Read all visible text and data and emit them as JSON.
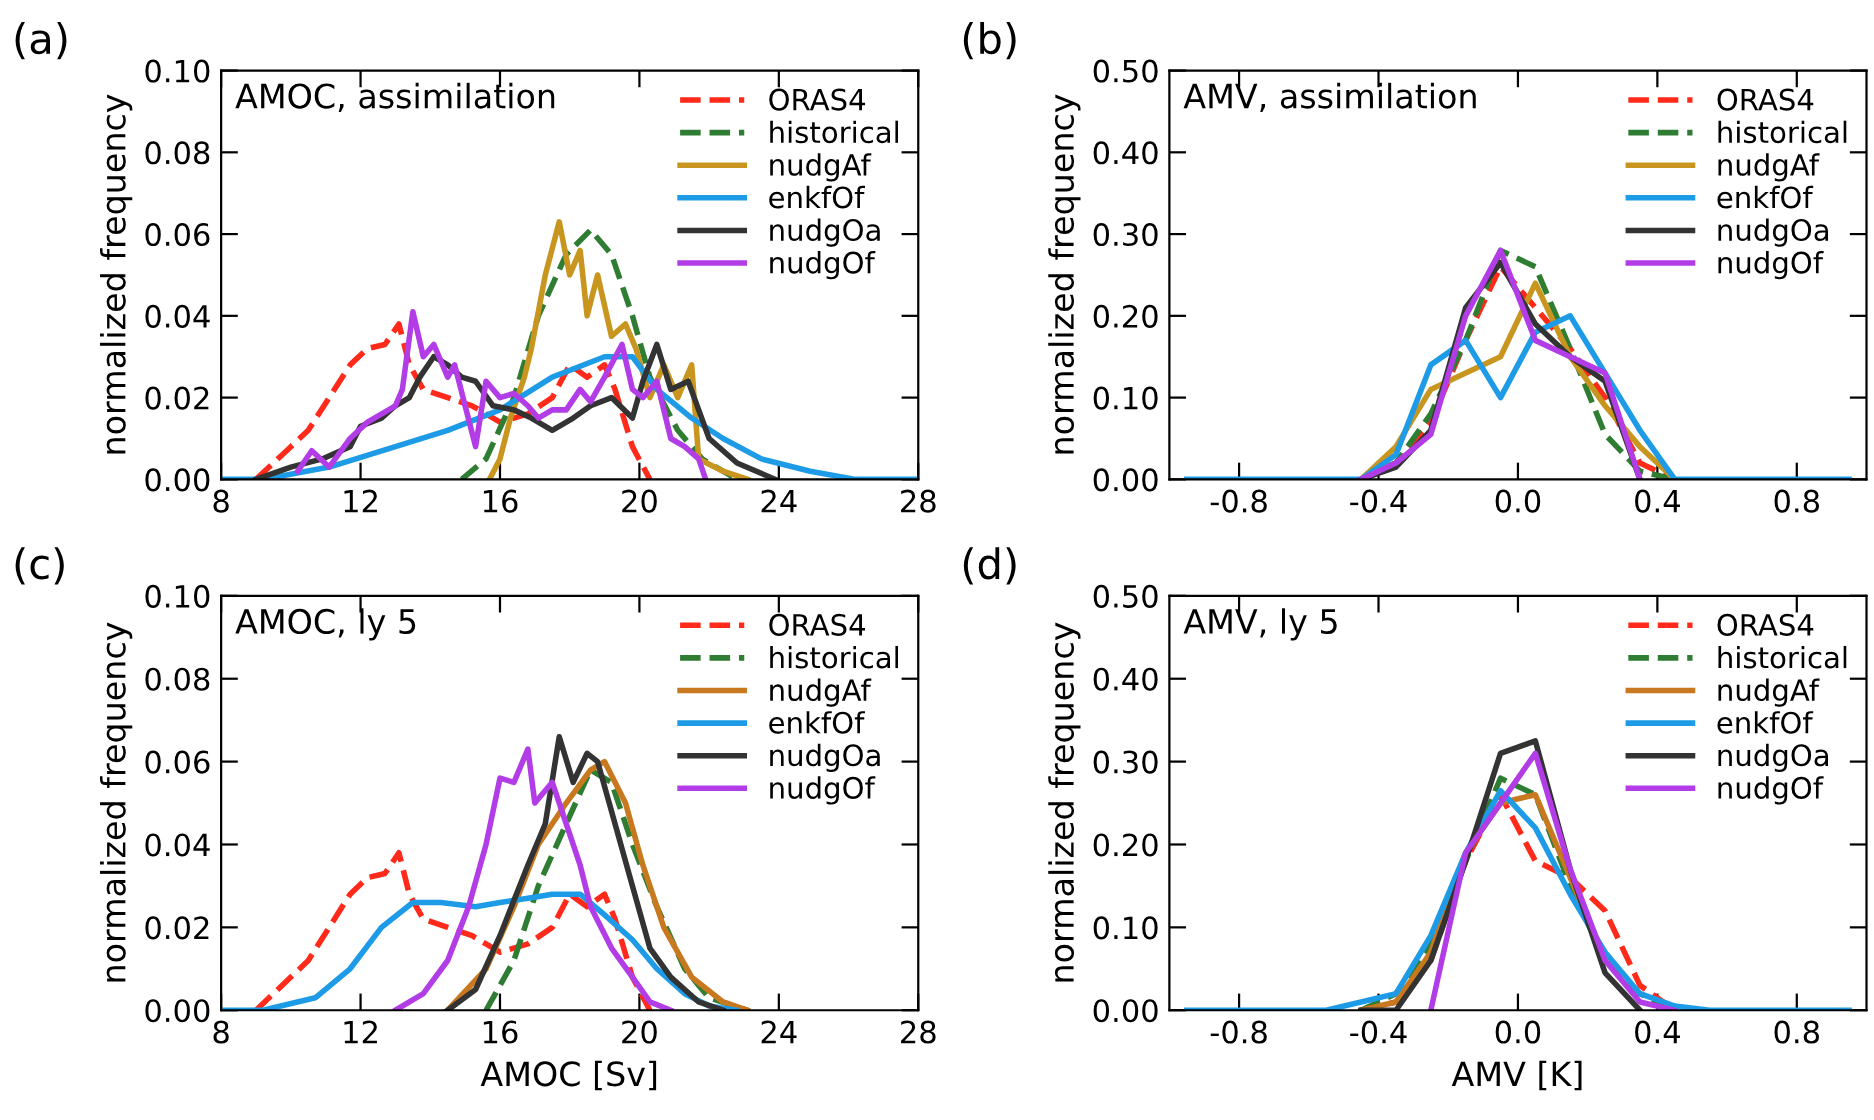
{
  "chart_data": [
    {
      "type": "line",
      "title": "(a)",
      "subtitle": "AMOC, assimilation",
      "ylabel": "normalized frequency",
      "xlim": [
        8,
        28
      ],
      "xticks": [
        8,
        12,
        16,
        20,
        24,
        28
      ],
      "ylim": [
        0,
        0.1
      ],
      "yticks": [
        {
          "value": 0,
          "label": "0.00"
        },
        {
          "value": 0.02,
          "label": "0.02"
        },
        {
          "value": 0.04,
          "label": "0.04"
        },
        {
          "value": 0.06,
          "label": "0.06"
        },
        {
          "value": 0.08,
          "label": "0.08"
        },
        {
          "value": 0.1,
          "label": "0.10"
        }
      ],
      "legend": "top right",
      "grid": false,
      "series": [
        {
          "name": "ORAS4",
          "color": "#ff2a1a",
          "line_style": "dashed",
          "x": [
            9.0,
            10.0,
            10.5,
            11.1,
            11.7,
            12.2,
            12.7,
            13.1,
            13.4,
            13.8,
            14.5,
            15.2,
            16.0,
            16.8,
            17.5,
            18.0,
            18.5,
            19.0,
            19.3,
            19.8,
            20.3
          ],
          "values": [
            0,
            0.008,
            0.012,
            0.02,
            0.028,
            0.032,
            0.033,
            0.038,
            0.028,
            0.022,
            0.02,
            0.018,
            0.014,
            0.016,
            0.02,
            0.028,
            0.025,
            0.028,
            0.022,
            0.008,
            0
          ]
        },
        {
          "name": "historical",
          "color": "#2e7d32",
          "line_style": "dashed",
          "x": [
            14.9,
            15.6,
            16.4,
            17.1,
            17.9,
            18.6,
            19.2,
            19.8,
            20.3,
            21.1,
            21.8,
            22.8
          ],
          "values": [
            0,
            0.005,
            0.02,
            0.04,
            0.055,
            0.061,
            0.055,
            0.04,
            0.025,
            0.012,
            0.005,
            0
          ]
        },
        {
          "name": "nudgAf",
          "color": "#c8961e",
          "line_style": "solid",
          "x": [
            15.7,
            16.0,
            16.3,
            16.7,
            16.9,
            17.3,
            17.7,
            18.0,
            18.3,
            18.5,
            18.8,
            19.2,
            19.6,
            19.9,
            20.3,
            20.7,
            21.1,
            21.5,
            21.7,
            22.4,
            23.1
          ],
          "values": [
            0,
            0.005,
            0.015,
            0.025,
            0.032,
            0.05,
            0.063,
            0.05,
            0.056,
            0.04,
            0.05,
            0.035,
            0.038,
            0.032,
            0.02,
            0.028,
            0.02,
            0.028,
            0.005,
            0.002,
            0
          ]
        },
        {
          "name": "enkfOf",
          "color": "#1e9be6",
          "line_style": "solid",
          "x": [
            8.0,
            9.2,
            11.1,
            13.0,
            14.5,
            16.0,
            17.5,
            19.0,
            19.8,
            20.5,
            21.5,
            22.4,
            23.5,
            24.9,
            26.2,
            28.0
          ],
          "values": [
            0,
            0,
            0.003,
            0.008,
            0.012,
            0.017,
            0.025,
            0.03,
            0.03,
            0.022,
            0.015,
            0.01,
            0.005,
            0.002,
            0,
            0
          ]
        },
        {
          "name": "nudgOa",
          "color": "#333333",
          "line_style": "solid",
          "x": [
            9.0,
            10.0,
            10.9,
            11.7,
            12.0,
            12.6,
            13.0,
            13.4,
            13.7,
            14.1,
            14.5,
            14.9,
            15.3,
            15.8,
            16.4,
            16.9,
            17.5,
            18.1,
            18.6,
            19.2,
            19.8,
            20.1,
            20.5,
            20.9,
            21.4,
            21.7,
            22.0,
            22.8,
            23.9
          ],
          "values": [
            0,
            0.003,
            0.005,
            0.008,
            0.013,
            0.015,
            0.018,
            0.02,
            0.025,
            0.03,
            0.028,
            0.025,
            0.024,
            0.018,
            0.017,
            0.015,
            0.012,
            0.015,
            0.018,
            0.02,
            0.015,
            0.024,
            0.033,
            0.022,
            0.024,
            0.017,
            0.01,
            0.004,
            0
          ]
        },
        {
          "name": "nudgOf",
          "color": "#b23ce6",
          "line_style": "solid",
          "x": [
            10.2,
            10.6,
            11.1,
            11.7,
            12.2,
            13.0,
            13.2,
            13.5,
            13.8,
            14.1,
            14.5,
            14.7,
            15.0,
            15.3,
            15.6,
            16.0,
            16.4,
            16.8,
            17.1,
            17.5,
            17.9,
            18.3,
            18.6,
            19.0,
            19.5,
            19.8,
            20.1,
            20.5,
            20.9,
            21.3,
            21.7,
            21.9
          ],
          "values": [
            0.002,
            0.007,
            0.003,
            0.01,
            0.014,
            0.018,
            0.022,
            0.041,
            0.03,
            0.033,
            0.025,
            0.028,
            0.018,
            0.008,
            0.024,
            0.02,
            0.021,
            0.018,
            0.015,
            0.017,
            0.017,
            0.022,
            0.019,
            0.025,
            0.033,
            0.022,
            0.02,
            0.024,
            0.01,
            0.008,
            0.005,
            0
          ]
        }
      ]
    },
    {
      "type": "line",
      "title": "(b)",
      "subtitle": "AMV, assimilation",
      "ylabel": "normalized frequency",
      "xlim": [
        -1,
        1
      ],
      "xticks": [
        {
          "value": -0.8,
          "label": "-0.8"
        },
        {
          "value": -0.4,
          "label": "-0.4"
        },
        {
          "value": 0,
          "label": "0.0"
        },
        {
          "value": 0.4,
          "label": "0.4"
        },
        {
          "value": 0.8,
          "label": "0.8"
        }
      ],
      "ylim": [
        0,
        0.5
      ],
      "yticks": [
        {
          "value": 0,
          "label": "0.00"
        },
        {
          "value": 0.1,
          "label": "0.10"
        },
        {
          "value": 0.2,
          "label": "0.20"
        },
        {
          "value": 0.3,
          "label": "0.30"
        },
        {
          "value": 0.4,
          "label": "0.40"
        },
        {
          "value": 0.5,
          "label": "0.50"
        }
      ],
      "legend": "top right",
      "grid": false,
      "series": [
        {
          "name": "ORAS4",
          "color": "#ff2a1a",
          "line_style": "dashed",
          "x": [
            -0.45,
            -0.35,
            -0.25,
            -0.15,
            -0.05,
            0.05,
            0.15,
            0.25,
            0.35,
            0.45
          ],
          "values": [
            0,
            0.02,
            0.07,
            0.17,
            0.26,
            0.21,
            0.16,
            0.1,
            0.02,
            0
          ]
        },
        {
          "name": "historical",
          "color": "#2e7d32",
          "line_style": "dashed",
          "x": [
            -0.45,
            -0.35,
            -0.25,
            -0.15,
            -0.05,
            0.05,
            0.15,
            0.25,
            0.35,
            0.45
          ],
          "values": [
            0,
            0.02,
            0.08,
            0.17,
            0.28,
            0.26,
            0.16,
            0.055,
            0.01,
            0
          ]
        },
        {
          "name": "nudgAf",
          "color": "#c8961e",
          "line_style": "solid",
          "x": [
            -0.45,
            -0.35,
            -0.25,
            -0.15,
            -0.05,
            0.05,
            0.15,
            0.25,
            0.35,
            0.45
          ],
          "values": [
            0,
            0.04,
            0.11,
            0.13,
            0.15,
            0.24,
            0.15,
            0.09,
            0.04,
            0
          ]
        },
        {
          "name": "enkfOf",
          "color": "#1e9be6",
          "line_style": "solid",
          "x": [
            -0.95,
            -0.45,
            -0.35,
            -0.25,
            -0.15,
            -0.05,
            0.05,
            0.15,
            0.25,
            0.35,
            0.45,
            0.95
          ],
          "values": [
            0,
            0,
            0.03,
            0.14,
            0.17,
            0.1,
            0.18,
            0.2,
            0.13,
            0.06,
            0,
            0
          ]
        },
        {
          "name": "nudgOa",
          "color": "#333333",
          "line_style": "solid",
          "x": [
            -0.45,
            -0.35,
            -0.25,
            -0.15,
            -0.05,
            0.05,
            0.15,
            0.25,
            0.35
          ],
          "values": [
            0,
            0.015,
            0.06,
            0.21,
            0.265,
            0.19,
            0.15,
            0.12,
            0
          ]
        },
        {
          "name": "nudgOf",
          "color": "#b23ce6",
          "line_style": "solid",
          "x": [
            -0.45,
            -0.35,
            -0.25,
            -0.15,
            -0.05,
            0.05,
            0.15,
            0.25,
            0.35
          ],
          "values": [
            0,
            0.02,
            0.055,
            0.2,
            0.28,
            0.17,
            0.15,
            0.13,
            0
          ]
        }
      ]
    },
    {
      "type": "line",
      "title": "(c)",
      "subtitle": "AMOC, ly 5",
      "xlabel": "AMOC [Sv]",
      "ylabel": "normalized frequency",
      "xlim": [
        8,
        28
      ],
      "xticks": [
        8,
        12,
        16,
        20,
        24,
        28
      ],
      "ylim": [
        0,
        0.1
      ],
      "yticks": [
        {
          "value": 0,
          "label": "0.00"
        },
        {
          "value": 0.02,
          "label": "0.02"
        },
        {
          "value": 0.04,
          "label": "0.04"
        },
        {
          "value": 0.06,
          "label": "0.06"
        },
        {
          "value": 0.08,
          "label": "0.08"
        },
        {
          "value": 0.1,
          "label": "0.10"
        }
      ],
      "legend": "top right",
      "grid": false,
      "series": [
        {
          "name": "ORAS4",
          "color": "#ff2a1a",
          "line_style": "dashed",
          "x": [
            9.0,
            10.0,
            10.5,
            11.1,
            11.7,
            12.2,
            12.7,
            13.1,
            13.4,
            13.8,
            14.5,
            15.2,
            16.0,
            16.8,
            17.5,
            18.0,
            18.5,
            19.0,
            19.3,
            19.8,
            20.3
          ],
          "values": [
            0,
            0.008,
            0.012,
            0.02,
            0.028,
            0.032,
            0.033,
            0.038,
            0.028,
            0.022,
            0.02,
            0.018,
            0.014,
            0.016,
            0.02,
            0.028,
            0.025,
            0.028,
            0.022,
            0.008,
            0
          ]
        },
        {
          "name": "historical",
          "color": "#2e7d32",
          "line_style": "dashed",
          "x": [
            15.6,
            16.4,
            17.1,
            17.9,
            18.6,
            19.2,
            19.8,
            20.5,
            21.3,
            22.0,
            23.1
          ],
          "values": [
            0,
            0.012,
            0.03,
            0.045,
            0.058,
            0.055,
            0.04,
            0.025,
            0.01,
            0.003,
            0
          ]
        },
        {
          "name": "nudgAf",
          "color": "#c8781e",
          "line_style": "solid",
          "x": [
            14.5,
            15.6,
            16.4,
            17.1,
            17.9,
            18.6,
            19.0,
            19.6,
            20.1,
            20.7,
            21.5,
            22.4,
            23.1
          ],
          "values": [
            0,
            0.01,
            0.025,
            0.04,
            0.05,
            0.058,
            0.06,
            0.05,
            0.035,
            0.02,
            0.008,
            0.002,
            0
          ]
        },
        {
          "name": "enkfOf",
          "color": "#1e9be6",
          "line_style": "solid",
          "x": [
            8.0,
            9.2,
            10.7,
            11.7,
            12.6,
            13.5,
            14.3,
            15.3,
            16.0,
            16.8,
            17.5,
            18.3,
            19.0,
            19.8,
            20.5,
            21.3,
            22.0,
            22.8
          ],
          "values": [
            0,
            0,
            0.003,
            0.01,
            0.02,
            0.026,
            0.026,
            0.025,
            0.026,
            0.027,
            0.028,
            0.028,
            0.023,
            0.017,
            0.01,
            0.004,
            0.001,
            0
          ]
        },
        {
          "name": "nudgOa",
          "color": "#333333",
          "line_style": "solid",
          "x": [
            14.5,
            15.3,
            16.0,
            16.8,
            17.3,
            17.7,
            18.1,
            18.5,
            18.8,
            19.2,
            19.8,
            20.3,
            20.9,
            21.7,
            22.4
          ],
          "values": [
            0,
            0.005,
            0.018,
            0.035,
            0.045,
            0.066,
            0.055,
            0.062,
            0.06,
            0.048,
            0.03,
            0.015,
            0.008,
            0.002,
            0
          ]
        },
        {
          "name": "nudgOf",
          "color": "#b23ce6",
          "line_style": "solid",
          "x": [
            13.0,
            13.8,
            14.5,
            15.1,
            15.6,
            16.0,
            16.4,
            16.8,
            17.0,
            17.5,
            17.9,
            18.3,
            18.6,
            19.2,
            19.8,
            20.3,
            20.9
          ],
          "values": [
            0,
            0.004,
            0.012,
            0.025,
            0.04,
            0.056,
            0.055,
            0.063,
            0.05,
            0.055,
            0.045,
            0.035,
            0.025,
            0.015,
            0.008,
            0.002,
            0
          ]
        }
      ]
    },
    {
      "type": "line",
      "title": "(d)",
      "subtitle": "AMV, ly 5",
      "xlabel": "AMV [K]",
      "ylabel": "normalized frequency",
      "xlim": [
        -1,
        1
      ],
      "xticks": [
        {
          "value": -0.8,
          "label": "-0.8"
        },
        {
          "value": -0.4,
          "label": "-0.4"
        },
        {
          "value": 0,
          "label": "0.0"
        },
        {
          "value": 0.4,
          "label": "0.4"
        },
        {
          "value": 0.8,
          "label": "0.8"
        }
      ],
      "ylim": [
        0,
        0.5
      ],
      "yticks": [
        {
          "value": 0,
          "label": "0.00"
        },
        {
          "value": 0.1,
          "label": "0.10"
        },
        {
          "value": 0.2,
          "label": "0.20"
        },
        {
          "value": 0.3,
          "label": "0.30"
        },
        {
          "value": 0.4,
          "label": "0.40"
        },
        {
          "value": 0.5,
          "label": "0.50"
        }
      ],
      "legend": "top right",
      "grid": false,
      "series": [
        {
          "name": "ORAS4",
          "color": "#ff2a1a",
          "line_style": "dashed",
          "x": [
            -0.45,
            -0.35,
            -0.25,
            -0.15,
            -0.05,
            0.05,
            0.15,
            0.25,
            0.35,
            0.45
          ],
          "values": [
            0,
            0.01,
            0.06,
            0.18,
            0.26,
            0.18,
            0.16,
            0.12,
            0.03,
            0
          ]
        },
        {
          "name": "historical",
          "color": "#2e7d32",
          "line_style": "dashed",
          "x": [
            -0.45,
            -0.35,
            -0.25,
            -0.15,
            -0.05,
            0.05,
            0.15,
            0.25,
            0.35,
            0.45
          ],
          "values": [
            0,
            0.02,
            0.08,
            0.18,
            0.28,
            0.26,
            0.15,
            0.06,
            0.02,
            0
          ]
        },
        {
          "name": "nudgAf",
          "color": "#c8781e",
          "line_style": "solid",
          "x": [
            -0.45,
            -0.35,
            -0.25,
            -0.15,
            -0.05,
            0.05,
            0.15,
            0.25
          ],
          "values": [
            0,
            0.01,
            0.07,
            0.19,
            0.25,
            0.26,
            0.16,
            0.06
          ]
        },
        {
          "name": "enkfOf",
          "color": "#1e9be6",
          "line_style": "solid",
          "x": [
            -0.95,
            -0.55,
            -0.45,
            -0.35,
            -0.25,
            -0.15,
            -0.05,
            0.05,
            0.15,
            0.25,
            0.35,
            0.45,
            0.55,
            0.95
          ],
          "values": [
            0,
            0,
            0.01,
            0.02,
            0.09,
            0.19,
            0.265,
            0.22,
            0.14,
            0.07,
            0.02,
            0.005,
            0,
            0
          ]
        },
        {
          "name": "nudgOa",
          "color": "#333333",
          "line_style": "solid",
          "x": [
            -0.45,
            -0.35,
            -0.25,
            -0.15,
            -0.05,
            0.05,
            0.15,
            0.25,
            0.35
          ],
          "values": [
            0,
            0,
            0.06,
            0.18,
            0.31,
            0.325,
            0.17,
            0.045,
            0
          ]
        },
        {
          "name": "nudgOf",
          "color": "#b23ce6",
          "line_style": "solid",
          "x": [
            -0.25,
            -0.15,
            -0.05,
            0.05,
            0.15,
            0.25,
            0.35,
            0.45
          ],
          "values": [
            0,
            0.19,
            0.25,
            0.31,
            0.17,
            0.06,
            0.01,
            0
          ]
        }
      ]
    }
  ]
}
